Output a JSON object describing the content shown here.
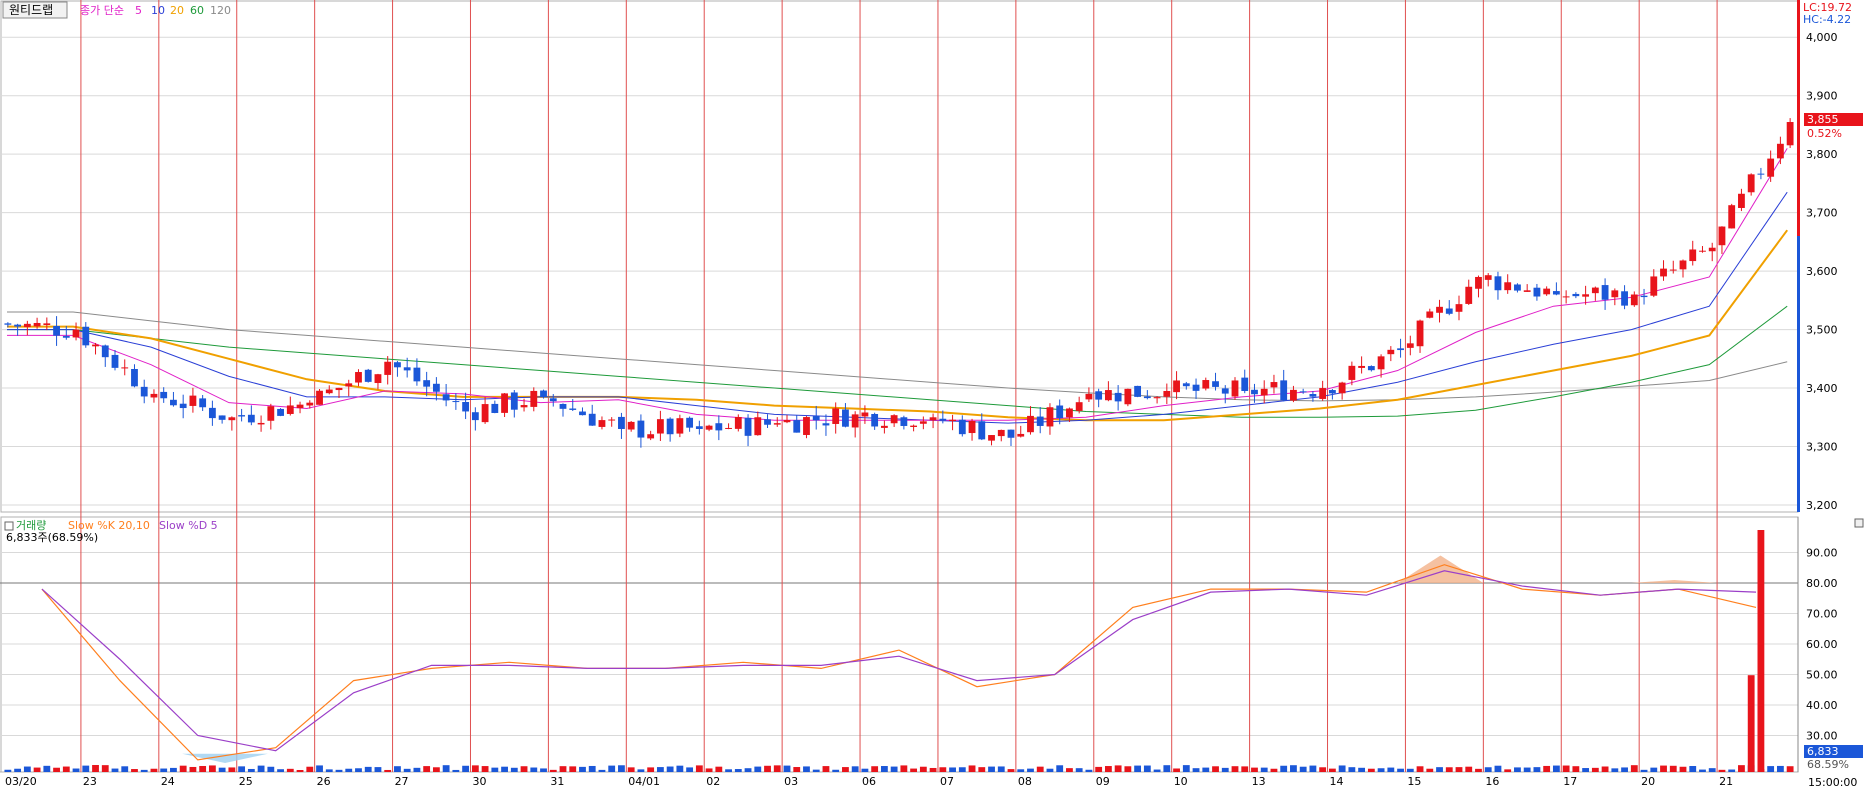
{
  "legend_top": {
    "title": "원티드랩",
    "ma_prefix": "종가 단순",
    "ma_periods": [
      "5",
      "10",
      "20",
      "60",
      "120"
    ]
  },
  "legend_bottom": {
    "volume_label": "거래량",
    "slowk_label": "Slow %K 20,10",
    "slowd_label": "Slow %D 5",
    "volume_readout": "6,833주(68.59%)"
  },
  "right_panel": {
    "lc": "LC:19.72",
    "hc": "HC:-4.22",
    "price_badge": "3,855",
    "price_change": "0.52%",
    "volume_badge": "6,833",
    "volume_pct": "68.59%",
    "time": "15:00:00"
  },
  "colors": {
    "up": "#e8141b",
    "down": "#1b57d8",
    "ma5": "#e020c8",
    "ma10": "#2a3fd6",
    "ma20": "#f0a000",
    "ma60": "#1e9a3a",
    "ma120": "#8a8a8a",
    "slowk": "#ff7f1e",
    "slowd": "#9b3fc8",
    "grid": "#d9d9d9",
    "day_sep": "#e05050"
  },
  "chart_data": {
    "type": "candlestick",
    "price_ylim": [
      3200,
      4050
    ],
    "price_ticks": [
      "3,200",
      "3,300",
      "3,400",
      "3,500",
      "3,600",
      "3,700",
      "3,800",
      "3,900",
      "4,000"
    ],
    "osc_ticks": [
      "30.00",
      "40.00",
      "50.00",
      "60.00",
      "70.00",
      "80.00",
      "90.00"
    ],
    "osc_ylim": [
      20,
      100
    ],
    "reference_line": 80,
    "x_labels": [
      "03/20",
      "23",
      "24",
      "25",
      "26",
      "27",
      "30",
      "31",
      "04/01",
      "02",
      "03",
      "06",
      "07",
      "08",
      "09",
      "10",
      "13",
      "14",
      "15",
      "16",
      "17",
      "20",
      "21"
    ],
    "session_closes": [
      3500,
      3390,
      3350,
      3375,
      3445,
      3360,
      3385,
      3330,
      3330,
      3340,
      3355,
      3350,
      3315,
      3390,
      3395,
      3395,
      3400,
      3465,
      3590,
      3560,
      3560,
      3640,
      3855
    ],
    "ma5": [
      3490,
      3440,
      3375,
      3365,
      3395,
      3390,
      3375,
      3380,
      3355,
      3345,
      3345,
      3345,
      3345,
      3350,
      3370,
      3385,
      3395,
      3430,
      3495,
      3540,
      3555,
      3590,
      3810
    ],
    "ma10": [
      3500,
      3470,
      3420,
      3385,
      3385,
      3380,
      3385,
      3385,
      3370,
      3355,
      3350,
      3345,
      3340,
      3345,
      3355,
      3370,
      3385,
      3410,
      3445,
      3475,
      3500,
      3540,
      3735
    ],
    "ma20": [
      3505,
      3485,
      3450,
      3415,
      3395,
      3385,
      3385,
      3385,
      3380,
      3370,
      3365,
      3360,
      3350,
      3345,
      3345,
      3355,
      3365,
      3380,
      3405,
      3430,
      3455,
      3490,
      3670
    ],
    "ma60": [
      3500,
      3485,
      3470,
      3460,
      3450,
      3440,
      3430,
      3420,
      3410,
      3400,
      3390,
      3380,
      3370,
      3360,
      3355,
      3350,
      3350,
      3352,
      3362,
      3385,
      3410,
      3440,
      3540
    ],
    "ma120": [
      3530,
      3515,
      3500,
      3490,
      3480,
      3470,
      3460,
      3450,
      3440,
      3430,
      3420,
      3410,
      3400,
      3392,
      3385,
      3380,
      3378,
      3380,
      3385,
      3393,
      3403,
      3413,
      3445
    ],
    "slow_k": [
      78,
      48,
      22,
      26,
      48,
      52,
      54,
      52,
      52,
      54,
      52,
      58,
      46,
      50,
      72,
      78,
      78,
      77,
      86,
      78,
      76,
      78,
      72
    ],
    "slow_d": [
      78,
      55,
      30,
      25,
      44,
      53,
      53,
      52,
      52,
      53,
      53,
      56,
      48,
      50,
      68,
      77,
      78,
      76,
      84,
      79,
      76,
      78,
      77
    ],
    "volume_spikes": [
      {
        "session": "21",
        "value": 100,
        "unit": "relative"
      },
      {
        "session": "21",
        "value": 40,
        "unit": "relative"
      }
    ]
  }
}
